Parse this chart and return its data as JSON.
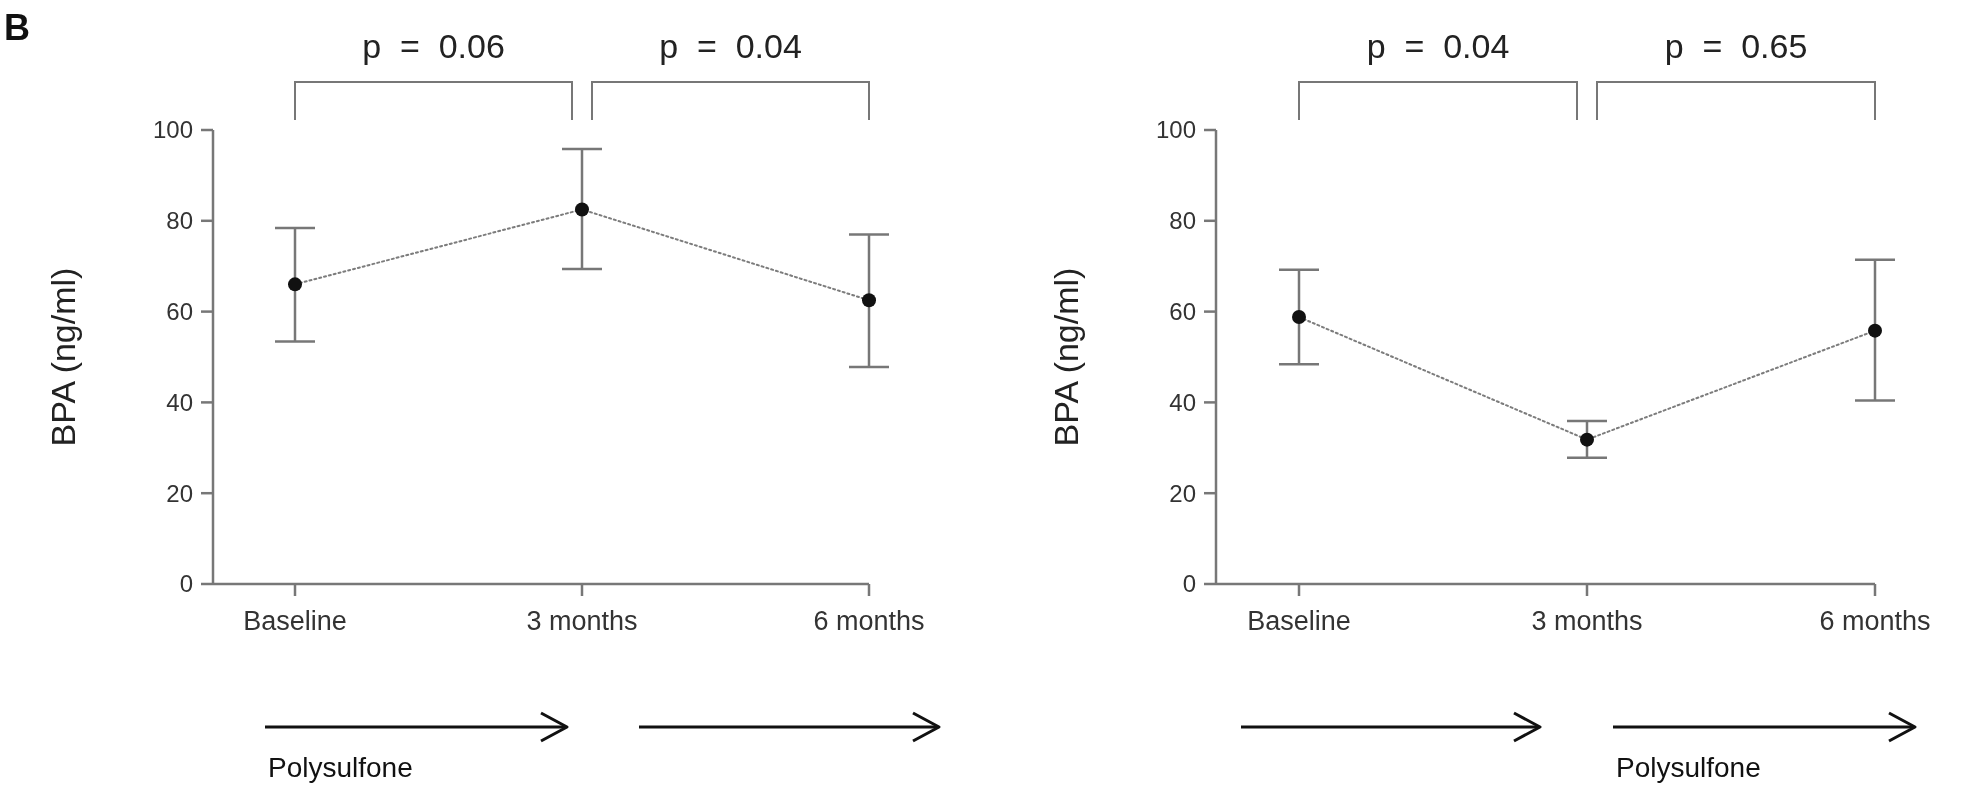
{
  "chart_data": [
    {
      "type": "line",
      "ylabel": "BPA (ng/ml)",
      "categories": [
        "Baseline",
        "3 months",
        "6 months"
      ],
      "series": [
        {
          "color": "#111111",
          "values": [
            66.0,
            82.5,
            62.5
          ],
          "errors": [
            [
              53.4,
              78.4
            ],
            [
              69.4,
              95.8
            ],
            [
              47.8,
              77.0
            ]
          ]
        }
      ],
      "ylim": [
        0,
        100
      ],
      "yticks": [
        0,
        20,
        40,
        60,
        80,
        100
      ],
      "marker": "circle",
      "line_style": "dotted",
      "grid": false,
      "annotations": [
        "B",
        "p  =  0.06",
        "p  =  0.04",
        "Polysulfone"
      ]
    },
    {
      "type": "line",
      "ylabel": "BPA (ng/ml)",
      "categories": [
        "Baseline",
        "3 months",
        "6 months"
      ],
      "series": [
        {
          "color": "#111111",
          "values": [
            58.8,
            31.8,
            55.8
          ],
          "errors": [
            [
              48.4,
              69.2
            ],
            [
              27.8,
              35.9
            ],
            [
              40.4,
              71.4
            ]
          ]
        }
      ],
      "ylim": [
        0,
        100
      ],
      "yticks": [
        0,
        20,
        40,
        60,
        80,
        100
      ],
      "marker": "circle",
      "line_style": "dotted",
      "grid": false,
      "annotations": [
        "p  =  0.04",
        "p  =  0.65",
        "Polysulfone"
      ]
    }
  ]
}
